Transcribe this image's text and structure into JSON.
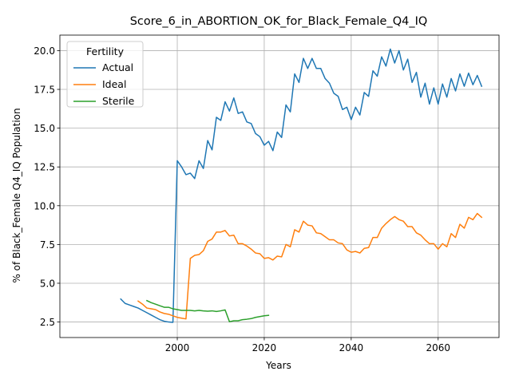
{
  "chart_data": {
    "type": "line",
    "title": "Score_6_in_ABORTION_OK_for_Black_Female_Q4_IQ",
    "xlabel": "Years",
    "ylabel": "% of Black_Female Q4_IQ Population",
    "xlim": [
      1973,
      2074
    ],
    "ylim": [
      1.5,
      21.0
    ],
    "xticks": [
      2000,
      2020,
      2040,
      2060
    ],
    "yticks": [
      2.5,
      5.0,
      7.5,
      10.0,
      12.5,
      15.0,
      17.5,
      20.0
    ],
    "xtick_labels": [
      "2000",
      "2020",
      "2040",
      "2060"
    ],
    "ytick_labels": [
      "2.5",
      "5.0",
      "7.5",
      "10.0",
      "12.5",
      "15.0",
      "17.5",
      "20.0"
    ],
    "grid": true,
    "legend": {
      "title": "Fertility",
      "placement": "top-left"
    },
    "series": [
      {
        "name": "Actual",
        "color": "#1f77b4",
        "x": [
          1987,
          1988,
          1989,
          1990,
          1991,
          1992,
          1993,
          1994,
          1995,
          1996,
          1997,
          1998,
          1999,
          2000,
          2001,
          2002,
          2003,
          2004,
          2005,
          2006,
          2007,
          2008,
          2009,
          2010,
          2011,
          2012,
          2013,
          2014,
          2015,
          2016,
          2017,
          2018,
          2019,
          2020,
          2021,
          2022,
          2023,
          2024,
          2025,
          2026,
          2027,
          2028,
          2029,
          2030,
          2031,
          2032,
          2033,
          2034,
          2035,
          2036,
          2037,
          2038,
          2039,
          2040,
          2041,
          2042,
          2043,
          2044,
          2045,
          2046,
          2047,
          2048,
          2049,
          2050,
          2051,
          2052,
          2053,
          2054,
          2055,
          2056,
          2057,
          2058,
          2059,
          2060,
          2061,
          2062,
          2063,
          2064,
          2065,
          2066,
          2067,
          2068,
          2069,
          2070
        ],
        "values": [
          3.98,
          3.7,
          3.6,
          3.5,
          3.4,
          3.25,
          3.1,
          2.95,
          2.8,
          2.65,
          2.55,
          2.5,
          2.48,
          12.9,
          12.5,
          12.0,
          12.1,
          11.75,
          12.9,
          12.4,
          14.2,
          13.6,
          15.7,
          15.5,
          16.7,
          16.1,
          16.95,
          15.95,
          16.05,
          15.4,
          15.3,
          14.65,
          14.45,
          13.9,
          14.15,
          13.55,
          14.75,
          14.4,
          16.5,
          16.05,
          18.5,
          17.95,
          19.5,
          18.85,
          19.5,
          18.85,
          18.85,
          18.2,
          17.9,
          17.25,
          17.05,
          16.2,
          16.35,
          15.55,
          16.35,
          15.85,
          17.3,
          17.05,
          18.7,
          18.35,
          19.6,
          19.0,
          20.1,
          19.2,
          20.0,
          18.75,
          19.45,
          17.95,
          18.6,
          17.0,
          17.9,
          16.55,
          17.6,
          16.55,
          17.85,
          17.0,
          18.2,
          17.4,
          18.5,
          17.7,
          18.55,
          17.8,
          18.4,
          17.7
        ]
      },
      {
        "name": "Ideal",
        "color": "#ff7f0e",
        "x": [
          1991,
          1992,
          1993,
          1994,
          1995,
          1996,
          1997,
          1998,
          1999,
          2000,
          2001,
          2002,
          2003,
          2004,
          2005,
          2006,
          2007,
          2008,
          2009,
          2010,
          2011,
          2012,
          2013,
          2014,
          2015,
          2016,
          2017,
          2018,
          2019,
          2020,
          2021,
          2022,
          2023,
          2024,
          2025,
          2026,
          2027,
          2028,
          2029,
          2030,
          2031,
          2032,
          2033,
          2034,
          2035,
          2036,
          2037,
          2038,
          2039,
          2040,
          2041,
          2042,
          2043,
          2044,
          2045,
          2046,
          2047,
          2048,
          2049,
          2050,
          2051,
          2052,
          2053,
          2054,
          2055,
          2056,
          2057,
          2058,
          2059,
          2060,
          2061,
          2062,
          2063,
          2064,
          2065,
          2066,
          2067,
          2068,
          2069,
          2070
        ],
        "values": [
          3.85,
          3.65,
          3.4,
          3.35,
          3.3,
          3.15,
          3.05,
          3.0,
          2.9,
          2.8,
          2.75,
          2.7,
          6.6,
          6.8,
          6.85,
          7.1,
          7.7,
          7.85,
          8.3,
          8.3,
          8.4,
          8.05,
          8.1,
          7.55,
          7.55,
          7.4,
          7.2,
          6.95,
          6.9,
          6.6,
          6.65,
          6.5,
          6.75,
          6.7,
          7.5,
          7.35,
          8.45,
          8.3,
          9.0,
          8.75,
          8.7,
          8.25,
          8.2,
          8.0,
          7.8,
          7.8,
          7.6,
          7.55,
          7.15,
          7.0,
          7.05,
          6.95,
          7.25,
          7.3,
          7.95,
          7.95,
          8.55,
          8.85,
          9.1,
          9.3,
          9.1,
          9.0,
          8.65,
          8.65,
          8.25,
          8.1,
          7.8,
          7.55,
          7.55,
          7.2,
          7.55,
          7.35,
          8.2,
          7.95,
          8.8,
          8.55,
          9.25,
          9.1,
          9.5,
          9.25
        ]
      },
      {
        "name": "Sterile",
        "color": "#2ca02c",
        "x": [
          1993,
          1994,
          1995,
          1996,
          1997,
          1998,
          1999,
          2000,
          2001,
          2002,
          2003,
          2004,
          2005,
          2006,
          2007,
          2008,
          2009,
          2010,
          2011,
          2012,
          2013,
          2014,
          2015,
          2016,
          2017,
          2018,
          2019,
          2020,
          2021
        ],
        "values": [
          3.88,
          3.75,
          3.65,
          3.55,
          3.45,
          3.45,
          3.35,
          3.3,
          3.25,
          3.25,
          3.25,
          3.22,
          3.25,
          3.22,
          3.2,
          3.22,
          3.18,
          3.22,
          3.28,
          2.52,
          2.58,
          2.58,
          2.65,
          2.68,
          2.72,
          2.8,
          2.85,
          2.9,
          2.93
        ]
      }
    ]
  }
}
